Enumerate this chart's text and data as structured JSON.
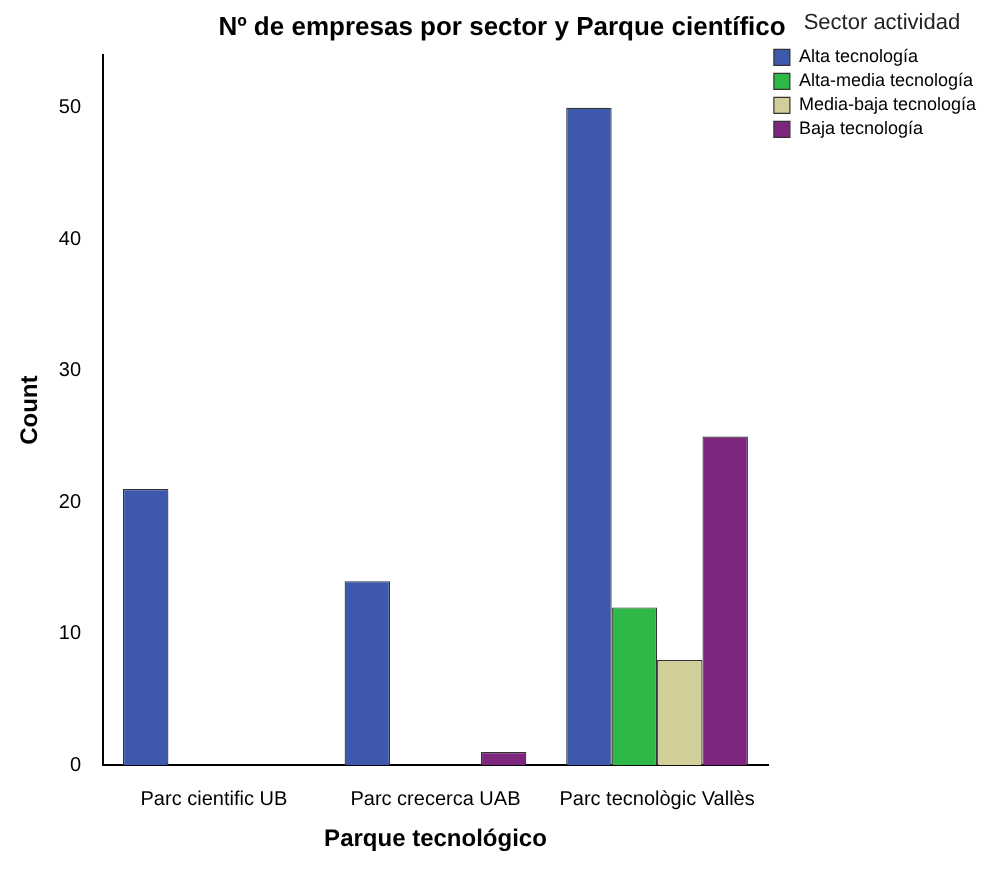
{
  "chart_data": {
    "type": "bar",
    "title": "Nº de empresas por sector y Parque científico",
    "xlabel": "Parque tecnológico",
    "ylabel": "Count",
    "legend_title": "Sector actividad",
    "categories": [
      "Parc cientific UB",
      "Parc crecerca UAB",
      "Parc tecnològic Vallès"
    ],
    "series": [
      {
        "name": "Alta tecnología",
        "color": "#3e58ac",
        "values": [
          21,
          14,
          50
        ]
      },
      {
        "name": "Alta-media tecnología",
        "color": "#2eb848",
        "values": [
          null,
          null,
          12
        ]
      },
      {
        "name": "Media-baja tecnología",
        "color": "#d2ce9a",
        "values": [
          null,
          null,
          8
        ]
      },
      {
        "name": "Baja tecnología",
        "color": "#7c277d",
        "values": [
          null,
          1,
          25
        ]
      }
    ],
    "ylim": [
      0,
      54
    ],
    "yticks": [
      0,
      10,
      20,
      30,
      40,
      50
    ],
    "grid": false,
    "legend": "right"
  }
}
